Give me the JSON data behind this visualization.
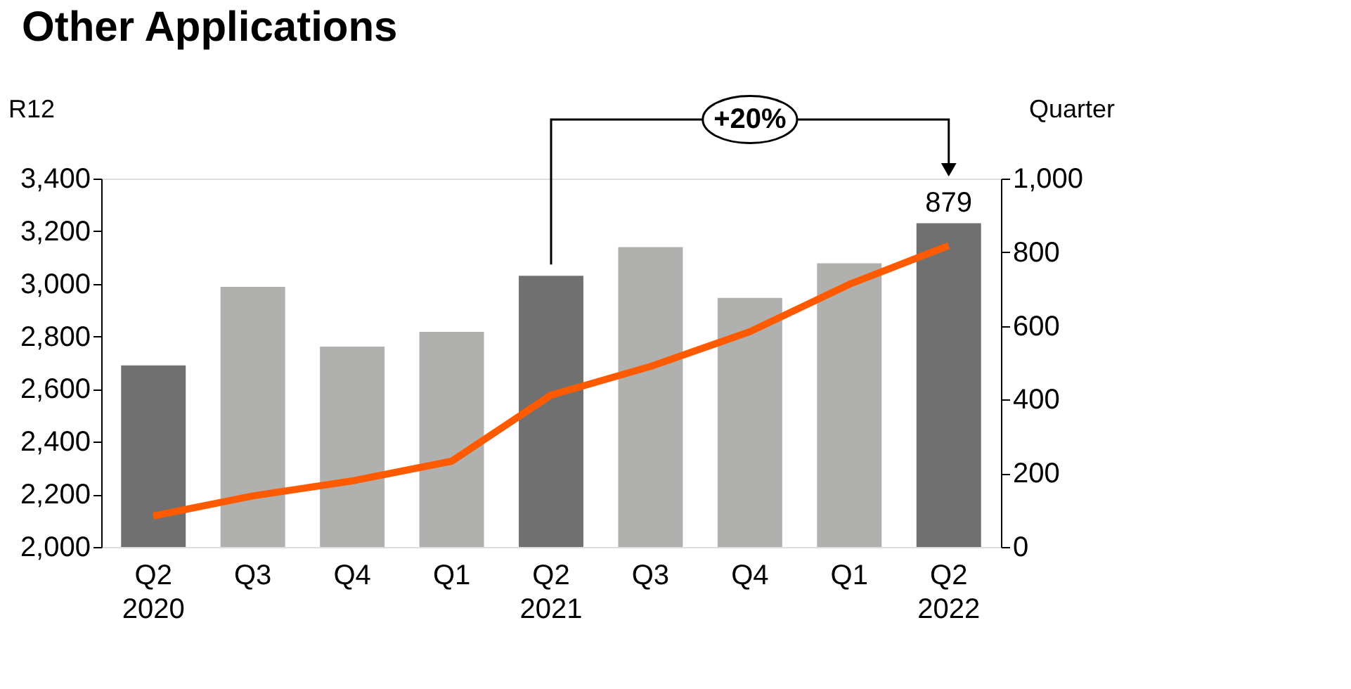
{
  "chart_data": {
    "type": "bar",
    "title": "Other Applications",
    "categories": [
      "Q2\n2020",
      "Q3",
      "Q4",
      "Q1",
      "Q2\n2021",
      "Q3",
      "Q4",
      "Q1",
      "Q2\n2022"
    ],
    "ylabel": "R12",
    "y2label": "Quarter",
    "ylim": [
      2000,
      3400
    ],
    "yticks": [
      {
        "value": 2000,
        "label": "2,000"
      },
      {
        "value": 2200,
        "label": "2,200"
      },
      {
        "value": 2400,
        "label": "2,400"
      },
      {
        "value": 2600,
        "label": "2,600"
      },
      {
        "value": 2800,
        "label": "2,800"
      },
      {
        "value": 3000,
        "label": "3,000"
      },
      {
        "value": 3200,
        "label": "3,200"
      },
      {
        "value": 3400,
        "label": "3,400"
      }
    ],
    "y2lim": [
      0,
      1000
    ],
    "y2ticks": [
      0,
      200,
      400,
      600,
      800,
      {
        "value": 1000,
        "label": "1,000"
      }
    ],
    "series": [
      {
        "axis": "y2",
        "colors": [
          "#6f706f",
          "#b0b1ae",
          "#b0b1ae",
          "#b0b1ae",
          "#6f706f",
          "#b0b1ae",
          "#b0b1ae",
          "#b0b1ae",
          "#6f706f"
        ],
        "values": [
          493,
          706,
          544,
          584,
          736,
          814,
          676,
          770,
          879
        ],
        "value_labels": [
          null,
          null,
          null,
          null,
          null,
          null,
          null,
          null,
          "879"
        ]
      },
      {
        "type": "line",
        "axis": "y",
        "color": "#ff5a00",
        "values": [
          2118,
          2194,
          2251,
          2326,
          2577,
          2686,
          2818,
          2998,
          3145
        ]
      }
    ],
    "annotations": [
      "+20%"
    ],
    "grid": false
  }
}
